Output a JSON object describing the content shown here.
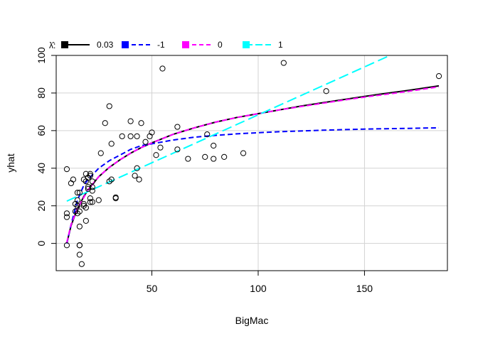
{
  "chart_data": {
    "type": "scatter",
    "xlabel": "BigMac",
    "ylabel": "yhat",
    "xlim": [
      5,
      189
    ],
    "ylim": [
      -14.5,
      100
    ],
    "x_ticks": [
      50,
      100,
      150
    ],
    "y_ticks": [
      0,
      20,
      40,
      60,
      80,
      100
    ],
    "grid": true,
    "legend": {
      "position": "top-left",
      "title": "λ̂:",
      "entries": [
        {
          "label": "0.03",
          "color": "#000000",
          "dash": "solid"
        },
        {
          "label": "-1",
          "color": "#0000FF",
          "dash": "dashed"
        },
        {
          "label": "0",
          "color": "#FF00FF",
          "dash": "dashed"
        },
        {
          "label": "1",
          "color": "#00FFFF",
          "dash": "longdash"
        }
      ]
    },
    "points": [
      [
        10,
        -1
      ],
      [
        10,
        16
      ],
      [
        10,
        14
      ],
      [
        10,
        39.5
      ],
      [
        12,
        32
      ],
      [
        13,
        34
      ],
      [
        14,
        21
      ],
      [
        14,
        17
      ],
      [
        15,
        23
      ],
      [
        15,
        16
      ],
      [
        15,
        27
      ],
      [
        15,
        20
      ],
      [
        16,
        -1
      ],
      [
        16,
        -1
      ],
      [
        16,
        17
      ],
      [
        16,
        9
      ],
      [
        16,
        -6
      ],
      [
        16,
        27
      ],
      [
        17,
        -11
      ],
      [
        18,
        21
      ],
      [
        18,
        34
      ],
      [
        18,
        20
      ],
      [
        19,
        19
      ],
      [
        19,
        12
      ],
      [
        19,
        33
      ],
      [
        19,
        37
      ],
      [
        20,
        29
      ],
      [
        20,
        35
      ],
      [
        20,
        30
      ],
      [
        21,
        36
      ],
      [
        21,
        37
      ],
      [
        21,
        24
      ],
      [
        21,
        22
      ],
      [
        22,
        33
      ],
      [
        22,
        30
      ],
      [
        22,
        28
      ],
      [
        22,
        22
      ],
      [
        25,
        23
      ],
      [
        26,
        48
      ],
      [
        28,
        64
      ],
      [
        30,
        73
      ],
      [
        30,
        33
      ],
      [
        31,
        34
      ],
      [
        31,
        53
      ],
      [
        33,
        24
      ],
      [
        33,
        24.5
      ],
      [
        36,
        57
      ],
      [
        40,
        57
      ],
      [
        40,
        65
      ],
      [
        42,
        36
      ],
      [
        43,
        40
      ],
      [
        43,
        57
      ],
      [
        44,
        34
      ],
      [
        45,
        64
      ],
      [
        47,
        54
      ],
      [
        49,
        57
      ],
      [
        50,
        59
      ],
      [
        52,
        47
      ],
      [
        54,
        51
      ],
      [
        55,
        93
      ],
      [
        62,
        62
      ],
      [
        62,
        50
      ],
      [
        67,
        45
      ],
      [
        75,
        46
      ],
      [
        76,
        58
      ],
      [
        79,
        45
      ],
      [
        79,
        52
      ],
      [
        84,
        46
      ],
      [
        93,
        48
      ],
      [
        112,
        96
      ],
      [
        132,
        81
      ],
      [
        185,
        89
      ]
    ],
    "series": [
      {
        "name": "0.03",
        "color": "#000000",
        "dash": "solid",
        "x": [
          10,
          12,
          15,
          18,
          20,
          25,
          30,
          35,
          40,
          45,
          50,
          60,
          70,
          80,
          90,
          100,
          110,
          120,
          130,
          140,
          150,
          160,
          170,
          185
        ],
        "y": [
          0,
          9.5,
          18.5,
          25,
          28.5,
          35.5,
          40.5,
          44.5,
          48,
          51,
          53.5,
          58,
          61.5,
          64.5,
          67,
          69,
          71,
          73,
          74.8,
          76.5,
          78.2,
          79.8,
          81.3,
          83.8
        ]
      },
      {
        "name": "-1",
        "color": "#0000FF",
        "dash": "dashed",
        "x": [
          10,
          12,
          15,
          18,
          20,
          25,
          30,
          35,
          40,
          45,
          50,
          60,
          70,
          80,
          90,
          100,
          110,
          120,
          130,
          140,
          150,
          160,
          170,
          185
        ],
        "y": [
          0,
          10,
          23,
          31,
          34,
          40,
          44,
          47,
          50,
          52,
          53,
          55,
          56.5,
          57.5,
          58.3,
          58.9,
          59.4,
          59.8,
          60.2,
          60.5,
          60.8,
          61,
          61.2,
          61.5
        ]
      },
      {
        "name": "0",
        "color": "#FF00FF",
        "dash": "dashed",
        "x": [
          10,
          12,
          15,
          18,
          20,
          25,
          30,
          35,
          40,
          45,
          50,
          60,
          70,
          80,
          90,
          100,
          110,
          120,
          130,
          140,
          150,
          160,
          170,
          185
        ],
        "y": [
          0.5,
          10,
          18.5,
          24.5,
          28.5,
          35.5,
          40.5,
          44.5,
          48,
          51,
          53.5,
          58,
          61.5,
          64.5,
          67,
          69,
          71,
          72.8,
          74.5,
          76.2,
          77.8,
          79.3,
          80.8,
          83.3
        ]
      },
      {
        "name": "1",
        "color": "#00FFFF",
        "dash": "longdash",
        "x": [
          10,
          162
        ],
        "y": [
          22.5,
          100
        ]
      }
    ]
  }
}
